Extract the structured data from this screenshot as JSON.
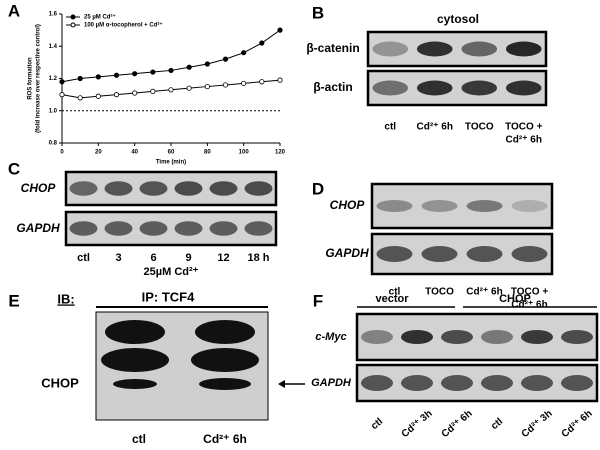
{
  "chart_data": {
    "type": "line",
    "panel_label": "A",
    "x_label": "Time (min)",
    "y_label": [
      "ROS formation",
      "(fold increase over respective control)"
    ],
    "x": [
      0,
      10,
      20,
      30,
      40,
      50,
      60,
      70,
      80,
      90,
      100,
      110,
      120
    ],
    "series": [
      {
        "name": "25 µM Cd²⁺",
        "color": "#000000",
        "marker": "filled",
        "values": [
          1.18,
          1.2,
          1.21,
          1.22,
          1.23,
          1.24,
          1.25,
          1.27,
          1.29,
          1.32,
          1.36,
          1.42,
          1.5
        ]
      },
      {
        "name": "100 µM α-tocopherol + Cd²⁺",
        "color": "#000000",
        "marker": "open",
        "values": [
          1.1,
          1.08,
          1.09,
          1.1,
          1.11,
          1.12,
          1.13,
          1.14,
          1.15,
          1.16,
          1.17,
          1.18,
          1.19
        ]
      }
    ],
    "xlim": [
      0,
      120
    ],
    "xticks": [
      0,
      20,
      40,
      60,
      80,
      100,
      120
    ],
    "ylim": [
      0.8,
      1.6
    ],
    "yticks": [
      0.8,
      {
        "value": 1,
        "label": "1.0"
      },
      1.2,
      1.4,
      1.6
    ],
    "reference_line": 1,
    "legend": "upper left"
  },
  "panels": {
    "B": {
      "label": "B",
      "heading": "cytosol",
      "rows": [
        "β-catenin",
        "β-actin"
      ],
      "lanes": [
        "ctl",
        "Cd²⁺ 6h",
        "TOCO",
        [
          "TOCO +",
          "Cd²⁺ 6h"
        ]
      ]
    },
    "C": {
      "label": "C",
      "rows": [
        "CHOP",
        "GAPDH"
      ],
      "lanes": [
        "ctl",
        "3",
        "6",
        "9",
        "12",
        "18 h"
      ],
      "treatment": "25µM Cd²⁺"
    },
    "D": {
      "label": "D",
      "rows": [
        "CHOP",
        "GAPDH"
      ],
      "lanes": [
        "ctl",
        "TOCO",
        "Cd²⁺ 6h",
        [
          "TOCO +",
          "Cd²⁺ 6h"
        ]
      ]
    },
    "E": {
      "label": "E",
      "ib": "IB:",
      "ip": "IP: TCF4",
      "band_label": "CHOP",
      "lanes": [
        "ctl",
        "Cd²⁺ 6h"
      ]
    },
    "F": {
      "label": "F",
      "groups": [
        "vector",
        "CHOP"
      ],
      "rows": [
        "c-Myc",
        "GAPDH"
      ],
      "lanes": [
        "ctl",
        "Cd²⁺ 3h",
        "Cd²⁺ 6h",
        "ctl",
        "Cd²⁺ 3h",
        "Cd²⁺ 6h"
      ]
    }
  }
}
